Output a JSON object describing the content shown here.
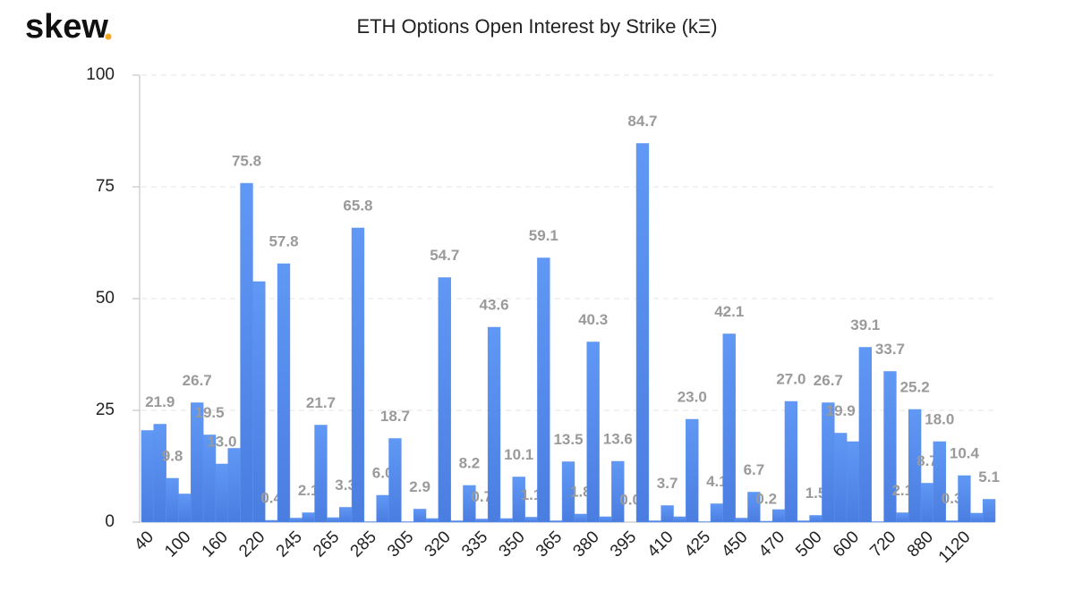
{
  "logo": "skew",
  "chart_data": {
    "type": "bar",
    "title": "ETH Options Open Interest by Strike (kΞ)",
    "categories": [
      "40",
      null,
      null,
      "100",
      null,
      null,
      "160",
      null,
      null,
      "220",
      null,
      null,
      "245",
      null,
      null,
      "265",
      null,
      null,
      "285",
      null,
      null,
      "305",
      null,
      null,
      "320",
      null,
      null,
      "335",
      null,
      null,
      "350",
      null,
      null,
      "365",
      null,
      null,
      "380",
      null,
      null,
      "395",
      null,
      null,
      "410",
      null,
      null,
      "425",
      null,
      null,
      "450",
      null,
      null,
      "470",
      null,
      null,
      "500",
      null,
      null,
      "600",
      null,
      null,
      "720",
      null,
      null,
      "880",
      null,
      null,
      "1120",
      null,
      null
    ],
    "values": [
      20.5,
      21.9,
      9.8,
      6.3,
      26.7,
      19.5,
      13.0,
      16.5,
      75.8,
      53.8,
      0.4,
      57.8,
      0.9,
      2.1,
      21.7,
      1.0,
      3.3,
      65.8,
      0.1,
      6.0,
      18.7,
      0.1,
      2.9,
      0.8,
      54.7,
      0.3,
      8.2,
      0.7,
      43.6,
      0.8,
      10.1,
      1.1,
      59.1,
      0.3,
      13.5,
      1.8,
      40.3,
      1.2,
      13.6,
      0.0,
      84.7,
      0.3,
      3.7,
      1.2,
      23.0,
      0.1,
      4.1,
      42.1,
      0.9,
      6.7,
      0.2,
      2.8,
      27.0,
      0.3,
      1.5,
      26.7,
      19.9,
      18.0,
      39.1,
      0.1,
      33.7,
      2.1,
      25.2,
      8.7,
      18.0,
      0.3,
      10.4,
      2.0,
      5.1
    ],
    "value_labels": [
      null,
      "21.9",
      "9.8",
      null,
      "26.7",
      "19.5",
      "13.0",
      null,
      "75.8",
      null,
      "0.4",
      "57.8",
      null,
      "2.1",
      "21.7",
      null,
      "3.3",
      "65.8",
      null,
      "6.0",
      "18.7",
      null,
      "2.9",
      null,
      "54.7",
      null,
      "8.2",
      "0.7",
      "43.6",
      null,
      "10.1",
      "1.1",
      "59.1",
      null,
      "13.5",
      "1.8",
      "40.3",
      null,
      "13.6",
      "0.0",
      "84.7",
      null,
      "3.7",
      null,
      "23.0",
      null,
      "4.1",
      "42.1",
      null,
      "6.7",
      "0.2",
      null,
      "27.0",
      null,
      "1.5",
      "26.7",
      "19.9",
      null,
      "39.1",
      null,
      "33.7",
      "2.1",
      "25.2",
      "8.7",
      "18.0",
      "0.3",
      "10.4",
      null,
      "5.1"
    ],
    "color": "#5b8ff0",
    "ylim": [
      0,
      100
    ],
    "yticks": [
      0,
      25,
      50,
      75,
      100
    ],
    "grid": true
  }
}
